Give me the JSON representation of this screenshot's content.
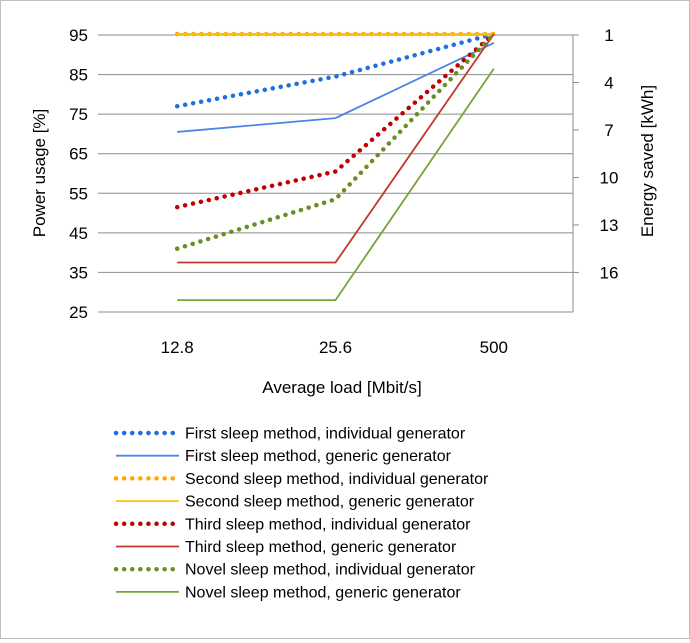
{
  "chart_data": {
    "type": "line",
    "categories": [
      "12.8",
      "25.6",
      "500"
    ],
    "xlabel": "Average load [Mbit/s]",
    "ylabel": "Power usage [%]",
    "y2label": "Energy saved [kWh]",
    "ylim": [
      25,
      95
    ],
    "yticks": [
      25,
      35,
      45,
      55,
      65,
      75,
      85,
      95
    ],
    "y2ticks": [
      1,
      4,
      7,
      10,
      13,
      16
    ],
    "y2_at_top": 1,
    "y2_per_10": 2.5,
    "grid": true,
    "legend_position": "bottom",
    "series": [
      {
        "name": "First sleep method, individual generator",
        "values": [
          77,
          84.5,
          97
        ],
        "color": "#1f6fe0",
        "style": "dotted"
      },
      {
        "name": "First sleep method, generic generator",
        "values": [
          70.5,
          74,
          93
        ],
        "color": "#4a86e8",
        "style": "solid"
      },
      {
        "name": "Second sleep method, individual generator",
        "values": [
          96,
          96,
          96
        ],
        "color": "#ffaa00",
        "style": "dotted"
      },
      {
        "name": "Second sleep method, generic generator",
        "values": [
          96,
          96,
          96
        ],
        "color": "#ffc000",
        "style": "solid"
      },
      {
        "name": "Third sleep method, individual generator",
        "values": [
          51.5,
          60.5,
          98
        ],
        "color": "#c00000",
        "style": "dotted"
      },
      {
        "name": "Third sleep method, generic generator",
        "values": [
          37.5,
          37.5,
          97
        ],
        "color": "#c0392b",
        "style": "solid"
      },
      {
        "name": "Novel sleep method,  individual generator",
        "values": [
          41,
          53.5,
          97
        ],
        "color": "#6b8e23",
        "style": "dotted"
      },
      {
        "name": "Novel sleep method,  generic generator",
        "values": [
          28,
          28,
          86.5
        ],
        "color": "#77a33b",
        "style": "solid"
      }
    ]
  }
}
